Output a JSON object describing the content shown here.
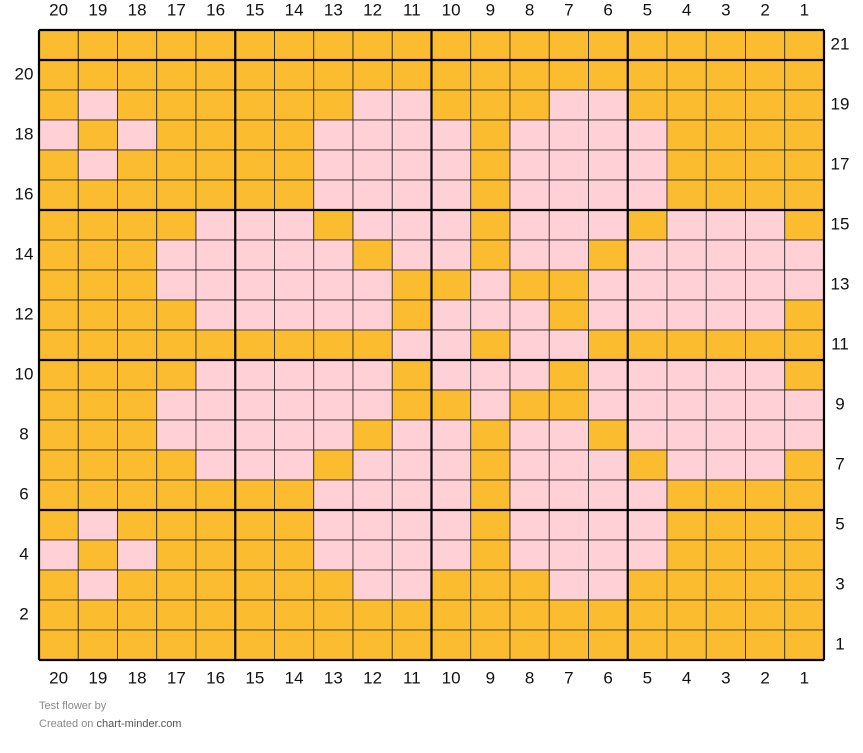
{
  "column_labels": [
    20,
    19,
    18,
    17,
    16,
    15,
    14,
    13,
    12,
    11,
    10,
    9,
    8,
    7,
    6,
    5,
    4,
    3,
    2,
    1
  ],
  "row_labels": [
    21,
    20,
    19,
    18,
    17,
    16,
    15,
    14,
    13,
    12,
    11,
    10,
    9,
    8,
    7,
    6,
    5,
    4,
    3,
    2,
    1
  ],
  "colors": {
    "Y": "#fbbc2f",
    "P": "#ffd0d6"
  },
  "rows": [
    "YYYYYYYYYYYYYYYYYYYY",
    "YYYYYYYYYYYYYYYYYYYY",
    "YPYYYYYYPPYYYPPYYYYY",
    "PYPYYYYPPPPYPPPPYYYY",
    "YPYYYYYPPPPYPPPPYYYY",
    "YYYYYYYPPPPYPPPPYYYY",
    "YYYYPPPYPPPYPPPYPPPY",
    "YYYPPPPPYPPYPPYPPPPP",
    "YYYPPPPPPYYPYYPPPPPP",
    "YYYYPPPPPYPPPYPPPPPY",
    "YYYYYYYYYPPYPPYYYYYY",
    "YYYYPPPPPYPPPYPPPPPY",
    "YYYPPPPPPYYPYYPPPPPP",
    "YYYPPPPPYPPYPPYPPPPP",
    "YYYYPPPYPPPYPPPYPPPY",
    "YYYYYYYPPPPYPPPPYYYY",
    "YPYYYYYPPPPYPPPPYYYY",
    "PYPYYYYPPPPYPPPPYYYY",
    "YPYYYYYYPPYYYPPYYYYY",
    "YYYYYYYYYYYYYYYYYYYY",
    "YYYYYYYYYYYYYYYYYYYY"
  ],
  "footer": {
    "title": "Test flower",
    "by": "by",
    "created": "Created on",
    "site": "chart-minder.com"
  }
}
